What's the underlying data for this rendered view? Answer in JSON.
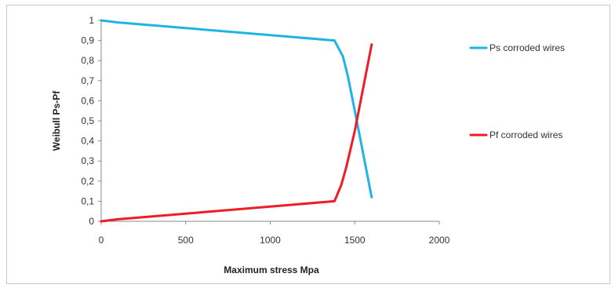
{
  "chart_data": {
    "type": "line",
    "xlabel": "Maximum stress Mpa",
    "ylabel": "Weibull Ps-Pf",
    "xlim": [
      0,
      2000
    ],
    "ylim": [
      0,
      1
    ],
    "x_ticks": [
      "0",
      "500",
      "1000",
      "1500",
      "2000"
    ],
    "y_ticks": [
      "0",
      "0,1",
      "0,2",
      "0,3",
      "0,4",
      "0,5",
      "0,6",
      "0,7",
      "0,8",
      "0,9",
      "1"
    ],
    "grid": false,
    "legend_position": "right",
    "series": [
      {
        "name": "Ps  corroded wires",
        "color": "#1fb4e6",
        "x": [
          0,
          100,
          1380,
          1430,
          1460,
          1500,
          1600
        ],
        "y": [
          1.0,
          0.99,
          0.9,
          0.82,
          0.72,
          0.55,
          0.12
        ]
      },
      {
        "name": "Pf  corroded wires",
        "color": "#ee1c25",
        "x": [
          0,
          100,
          1380,
          1420,
          1450,
          1500,
          1600
        ],
        "y": [
          0.0,
          0.01,
          0.1,
          0.18,
          0.27,
          0.45,
          0.88
        ]
      }
    ]
  }
}
